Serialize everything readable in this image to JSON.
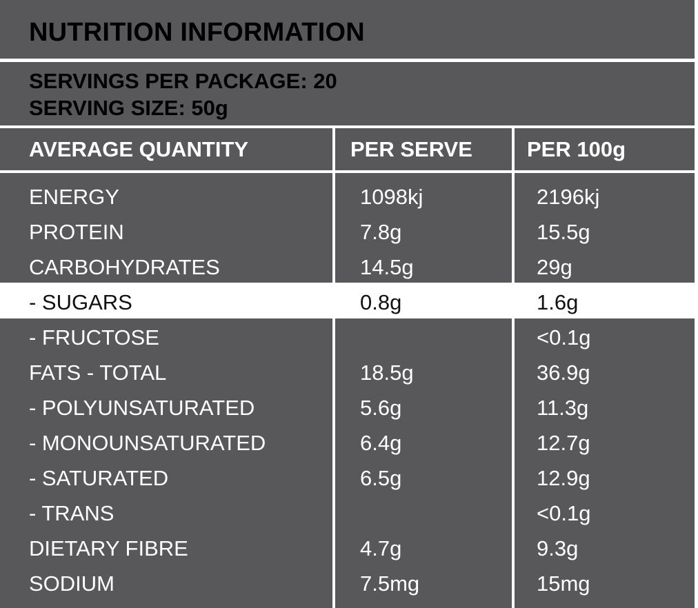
{
  "title": "NUTRITION INFORMATION",
  "servings": {
    "per_package": "SERVINGS PER PACKAGE: 20",
    "serving_size": "SERVING SIZE: 50g"
  },
  "columns": [
    "AVERAGE QUANTITY",
    "PER SERVE",
    "PER 100g"
  ],
  "rows": [
    {
      "name": "ENERGY",
      "per_serve": "1098kj",
      "per_100g": "2196kj"
    },
    {
      "name": "PROTEIN",
      "per_serve": "7.8g",
      "per_100g": "15.5g"
    },
    {
      "name": "CARBOHYDRATES",
      "per_serve": "14.5g",
      "per_100g": "29g"
    },
    {
      "name": "- SUGARS",
      "per_serve": "0.8g",
      "per_100g": "1.6g"
    },
    {
      "name": "- FRUCTOSE",
      "per_serve": "",
      "per_100g": "<0.1g"
    },
    {
      "name": "FATS - TOTAL",
      "per_serve": "18.5g",
      "per_100g": "36.9g"
    },
    {
      "name": "- POLYUNSATURATED",
      "per_serve": "5.6g",
      "per_100g": "11.3g"
    },
    {
      "name": "- MONOUNSATURATED",
      "per_serve": "6.4g",
      "per_100g": "12.7g"
    },
    {
      "name": "- SATURATED",
      "per_serve": "6.5g",
      "per_100g": "12.9g"
    },
    {
      "name": "- TRANS",
      "per_serve": "",
      "per_100g": "<0.1g"
    },
    {
      "name": "DIETARY FIBRE",
      "per_serve": "4.7g",
      "per_100g": "9.3g"
    },
    {
      "name": "SODIUM",
      "per_serve": "7.5mg",
      "per_100g": "15mg"
    }
  ],
  "colors": {
    "panel": "#58585b",
    "text": "#ffffff",
    "highlight_background": "#ffffff",
    "highlight_text": "#111111"
  }
}
